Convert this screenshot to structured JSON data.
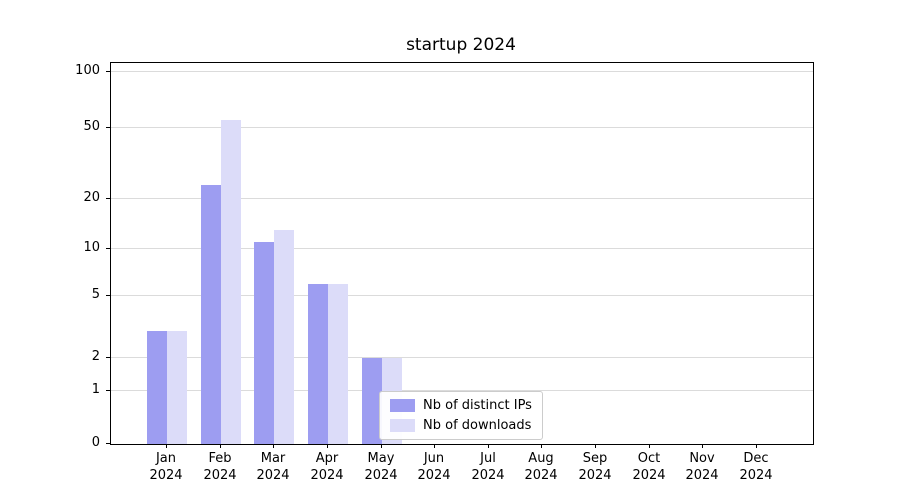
{
  "chart_data": {
    "type": "bar",
    "title": "startup 2024",
    "categories": [
      "Jan",
      "Feb",
      "Mar",
      "Apr",
      "May",
      "Jun",
      "Jul",
      "Aug",
      "Sep",
      "Oct",
      "Nov",
      "Dec"
    ],
    "year_label": "2024",
    "series": [
      {
        "name": "Nb of distinct IPs",
        "color": "#9d9df1",
        "values": [
          3,
          24,
          11,
          6,
          2,
          0,
          0,
          0,
          0,
          0,
          0,
          0
        ]
      },
      {
        "name": "Nb of downloads",
        "color": "#dcdcf9",
        "values": [
          3,
          55,
          13,
          6,
          2,
          0,
          0,
          0,
          0,
          0,
          0,
          0
        ]
      }
    ],
    "yscale": "symlog",
    "yticks": [
      0,
      1,
      2,
      5,
      10,
      20,
      50,
      100
    ],
    "ylim": [
      0,
      115
    ],
    "xlabel": "",
    "ylabel": "",
    "grid": true,
    "legend_position": "lower-center-left-inside"
  }
}
